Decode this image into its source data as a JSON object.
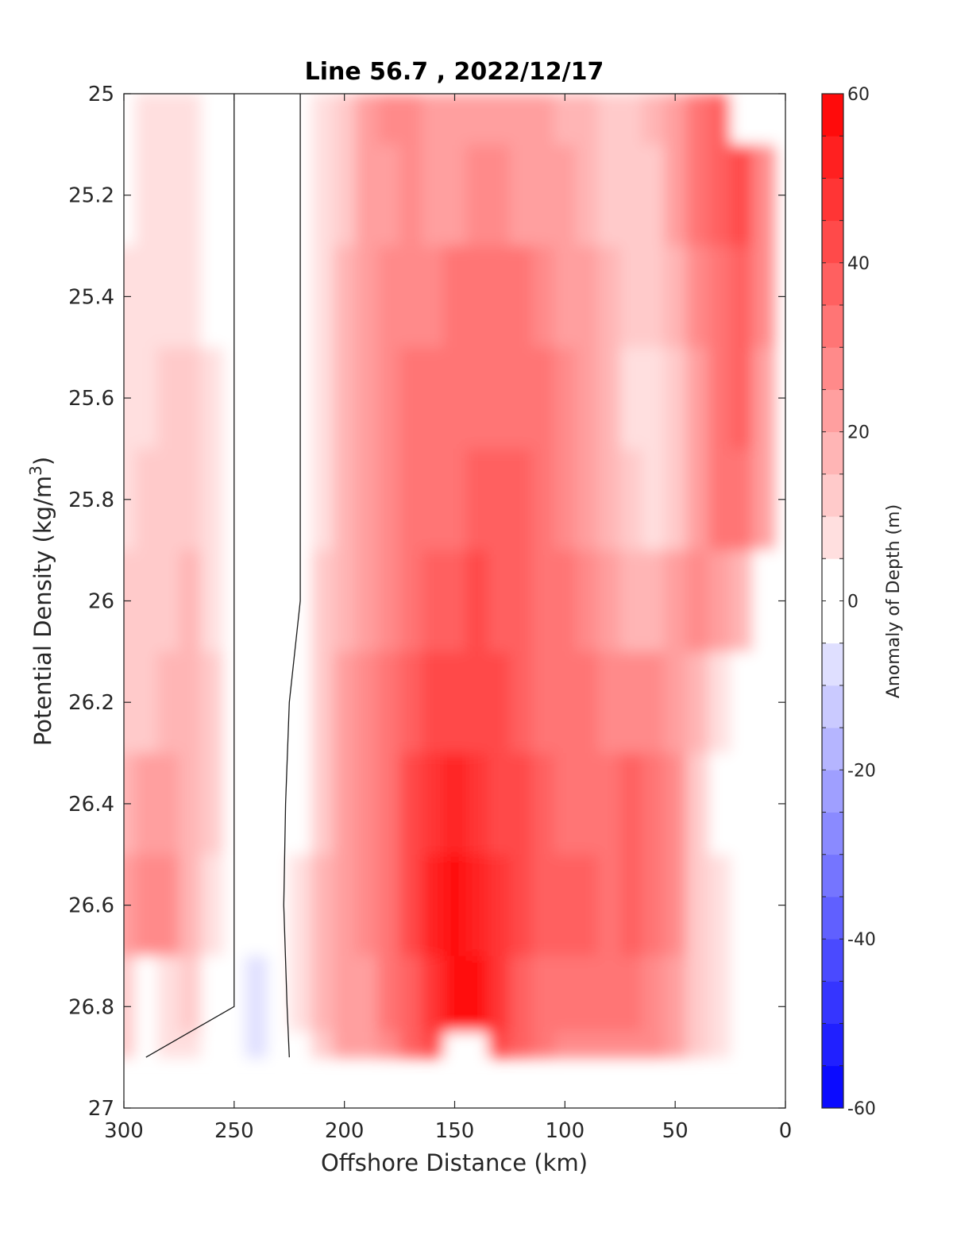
{
  "chart_data": {
    "type": "heatmap",
    "title": "Line 56.7 , 2022/12/17",
    "xlabel": "Offshore Distance (km)",
    "ylabel": "Potential Density (kg/m",
    "ylabel_sup": "3",
    "ylabel_close": ")",
    "xlim": [
      300,
      0
    ],
    "ylim": [
      25,
      27
    ],
    "x_ticks": [
      300,
      250,
      200,
      150,
      100,
      50,
      0
    ],
    "y_ticks": [
      25,
      25.2,
      25.4,
      25.6,
      25.8,
      26,
      26.2,
      26.4,
      26.6,
      26.8,
      27
    ],
    "colorbar": {
      "label": "Anomaly of Depth (m)",
      "range": [
        -60,
        60
      ],
      "ticks": [
        60,
        40,
        20,
        0,
        -20,
        -40,
        -60
      ],
      "levels": [
        -60,
        -55,
        -50,
        -45,
        -40,
        -35,
        -30,
        -25,
        -20,
        -15,
        -10,
        -5,
        0,
        5,
        10,
        15,
        20,
        25,
        30,
        35,
        40,
        45,
        50,
        55,
        60
      ]
    },
    "y_levels": [
      25.0,
      25.2,
      25.4,
      25.6,
      25.8,
      26.0,
      26.2,
      26.4,
      26.6,
      26.8,
      26.9
    ],
    "x_columns": [
      300,
      290,
      280,
      270,
      260,
      250,
      240,
      230,
      220,
      210,
      200,
      190,
      180,
      170,
      160,
      150,
      140,
      130,
      120,
      110,
      100,
      90,
      80,
      70,
      60,
      50,
      40,
      30,
      20,
      10
    ],
    "values": [
      [
        2,
        5,
        7,
        6,
        3,
        0,
        -3,
        -2,
        0,
        8,
        12,
        20,
        25,
        26,
        24,
        22,
        23,
        24,
        22,
        20,
        18,
        15,
        14,
        14,
        16,
        22,
        32,
        38,
        null,
        null
      ],
      [
        4,
        8,
        9,
        8,
        4,
        0,
        -4,
        -3,
        0,
        8,
        14,
        22,
        24,
        26,
        24,
        22,
        25,
        26,
        24,
        22,
        20,
        17,
        14,
        12,
        14,
        20,
        30,
        38,
        42,
        28
      ],
      [
        5,
        8,
        9,
        8,
        4,
        0,
        -4,
        -3,
        0,
        8,
        15,
        22,
        26,
        28,
        27,
        30,
        32,
        32,
        30,
        28,
        24,
        20,
        15,
        10,
        10,
        16,
        26,
        34,
        38,
        26
      ],
      [
        6,
        9,
        10,
        10,
        5,
        0,
        -4,
        -3,
        0,
        8,
        15,
        22,
        26,
        30,
        30,
        30,
        33,
        34,
        32,
        30,
        26,
        22,
        16,
        8,
        6,
        14,
        24,
        32,
        36,
        24
      ],
      [
        8,
        10,
        12,
        14,
        6,
        0,
        -4,
        -3,
        0,
        8,
        16,
        22,
        26,
        30,
        30,
        32,
        36,
        38,
        36,
        32,
        28,
        24,
        18,
        10,
        8,
        14,
        24,
        30,
        32,
        20
      ],
      [
        10,
        12,
        14,
        16,
        8,
        0,
        -4,
        -3,
        0,
        10,
        18,
        24,
        28,
        34,
        36,
        36,
        40,
        38,
        36,
        34,
        30,
        26,
        22,
        16,
        16,
        20,
        26,
        24,
        16,
        null
      ],
      [
        12,
        14,
        16,
        18,
        10,
        0,
        -2,
        -2,
        2,
        12,
        20,
        26,
        32,
        38,
        42,
        44,
        44,
        42,
        38,
        34,
        32,
        30,
        28,
        26,
        26,
        22,
        16,
        8,
        null,
        null
      ],
      [
        16,
        22,
        20,
        18,
        10,
        0,
        -2,
        -2,
        4,
        14,
        22,
        28,
        34,
        40,
        46,
        50,
        48,
        44,
        40,
        36,
        34,
        32,
        32,
        36,
        34,
        26,
        12,
        4,
        null,
        null
      ],
      [
        22,
        28,
        26,
        16,
        6,
        0,
        -4,
        -2,
        6,
        16,
        24,
        28,
        34,
        42,
        50,
        56,
        54,
        46,
        40,
        36,
        36,
        38,
        34,
        36,
        34,
        28,
        14,
        6,
        null,
        null
      ],
      [
        12,
        4,
        8,
        10,
        2,
        0,
        -8,
        -4,
        6,
        16,
        22,
        22,
        30,
        38,
        48,
        58,
        56,
        46,
        38,
        34,
        32,
        32,
        30,
        30,
        28,
        24,
        12,
        6,
        null,
        null
      ],
      [
        10,
        0,
        6,
        8,
        0,
        0,
        -6,
        -4,
        4,
        12,
        20,
        22,
        28,
        36,
        44,
        null,
        null,
        44,
        36,
        30,
        28,
        28,
        26,
        26,
        26,
        22,
        12,
        6,
        null,
        null
      ]
    ]
  }
}
